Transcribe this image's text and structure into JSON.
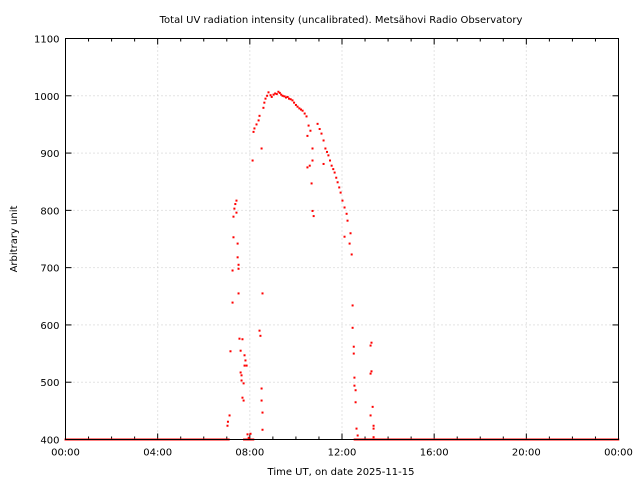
{
  "chart_data": {
    "type": "scatter",
    "title": "Total UV radiation intensity (uncalibrated). Metsähovi Radio Observatory",
    "xlabel": "Time UT, on date 2025-11-15",
    "ylabel": "Arbitrary unit",
    "xlim": [
      0,
      24
    ],
    "ylim": [
      400,
      1100
    ],
    "x_ticks": [
      {
        "value": 0,
        "label": "00:00"
      },
      {
        "value": 4,
        "label": "04:00"
      },
      {
        "value": 8,
        "label": "08:00"
      },
      {
        "value": 12,
        "label": "12:00"
      },
      {
        "value": 16,
        "label": "16:00"
      },
      {
        "value": 20,
        "label": "20:00"
      },
      {
        "value": 24,
        "label": "00:00"
      }
    ],
    "y_ticks": [
      400,
      500,
      600,
      700,
      800,
      900,
      1000,
      1100
    ],
    "grid": true,
    "series_color": "#ff0000",
    "baseline": {
      "value": 400,
      "ranges": [
        [
          0,
          7.1
        ],
        [
          7.75,
          8.15
        ],
        [
          12.55,
          24
        ]
      ],
      "interval_hours": 0.04
    },
    "points": [
      [
        7.03,
        424
      ],
      [
        7.05,
        431
      ],
      [
        7.12,
        442
      ],
      [
        7.16,
        554
      ],
      [
        7.25,
        639
      ],
      [
        7.25,
        695
      ],
      [
        7.29,
        753
      ],
      [
        7.29,
        789
      ],
      [
        7.33,
        803
      ],
      [
        7.37,
        811
      ],
      [
        7.42,
        817
      ],
      [
        7.42,
        796
      ],
      [
        7.47,
        742
      ],
      [
        7.47,
        718
      ],
      [
        7.51,
        705
      ],
      [
        7.51,
        655
      ],
      [
        7.51,
        698
      ],
      [
        7.55,
        576
      ],
      [
        7.6,
        555
      ],
      [
        7.6,
        517
      ],
      [
        7.64,
        503
      ],
      [
        7.64,
        512
      ],
      [
        7.68,
        473
      ],
      [
        7.73,
        468
      ],
      [
        7.68,
        575
      ],
      [
        7.77,
        547
      ],
      [
        7.77,
        529
      ],
      [
        7.81,
        538
      ],
      [
        7.86,
        529
      ],
      [
        7.73,
        498
      ],
      [
        7.9,
        409
      ],
      [
        7.95,
        403
      ],
      [
        8.03,
        410
      ],
      [
        8.12,
        887
      ],
      [
        8.16,
        937
      ],
      [
        8.2,
        943
      ],
      [
        8.29,
        950
      ],
      [
        8.38,
        957
      ],
      [
        8.42,
        965
      ],
      [
        8.46,
        581
      ],
      [
        8.42,
        590
      ],
      [
        8.51,
        908
      ],
      [
        8.55,
        655
      ],
      [
        8.51,
        489
      ],
      [
        8.51,
        468
      ],
      [
        8.55,
        447
      ],
      [
        8.55,
        417
      ],
      [
        8.59,
        979
      ],
      [
        8.63,
        988
      ],
      [
        8.68,
        995
      ],
      [
        8.75,
        1000
      ],
      [
        8.81,
        1006
      ],
      [
        8.9,
        1001
      ],
      [
        8.95,
        998
      ],
      [
        9.03,
        1002
      ],
      [
        9.1,
        1004
      ],
      [
        9.17,
        1003
      ],
      [
        9.24,
        1007
      ],
      [
        9.3,
        1005
      ],
      [
        9.36,
        1002
      ],
      [
        9.42,
        1000
      ],
      [
        9.5,
        999
      ],
      [
        9.57,
        997
      ],
      [
        9.64,
        998
      ],
      [
        9.7,
        995
      ],
      [
        9.77,
        994
      ],
      [
        9.85,
        992
      ],
      [
        9.92,
        988
      ],
      [
        10.0,
        984
      ],
      [
        10.07,
        981
      ],
      [
        10.15,
        978
      ],
      [
        10.22,
        976
      ],
      [
        10.29,
        974
      ],
      [
        10.38,
        969
      ],
      [
        10.46,
        964
      ],
      [
        10.55,
        948
      ],
      [
        10.63,
        939
      ],
      [
        10.72,
        908
      ],
      [
        10.72,
        887
      ],
      [
        10.6,
        878
      ],
      [
        10.68,
        847
      ],
      [
        10.72,
        799
      ],
      [
        10.77,
        790
      ],
      [
        10.5,
        875
      ],
      [
        10.5,
        930
      ],
      [
        10.94,
        951
      ],
      [
        11.03,
        942
      ],
      [
        11.11,
        934
      ],
      [
        11.2,
        922
      ],
      [
        11.2,
        881
      ],
      [
        11.28,
        908
      ],
      [
        11.35,
        902
      ],
      [
        11.41,
        896
      ],
      [
        11.48,
        887
      ],
      [
        11.55,
        878
      ],
      [
        11.62,
        872
      ],
      [
        11.68,
        866
      ],
      [
        11.75,
        857
      ],
      [
        11.81,
        849
      ],
      [
        11.88,
        840
      ],
      [
        11.94,
        831
      ],
      [
        12.02,
        817
      ],
      [
        12.11,
        805
      ],
      [
        12.2,
        794
      ],
      [
        12.24,
        782
      ],
      [
        12.11,
        754
      ],
      [
        12.37,
        760
      ],
      [
        12.33,
        742
      ],
      [
        12.42,
        723
      ],
      [
        12.46,
        634
      ],
      [
        12.46,
        595
      ],
      [
        12.51,
        562
      ],
      [
        12.51,
        550
      ],
      [
        12.54,
        508
      ],
      [
        12.54,
        494
      ],
      [
        12.59,
        486
      ],
      [
        12.59,
        465
      ],
      [
        12.63,
        419
      ],
      [
        12.68,
        407
      ],
      [
        13.24,
        564
      ],
      [
        13.28,
        569
      ],
      [
        13.24,
        515
      ],
      [
        13.28,
        519
      ],
      [
        13.24,
        442
      ],
      [
        13.33,
        457
      ],
      [
        13.37,
        424
      ],
      [
        13.37,
        419
      ],
      [
        13.37,
        404
      ]
    ]
  }
}
